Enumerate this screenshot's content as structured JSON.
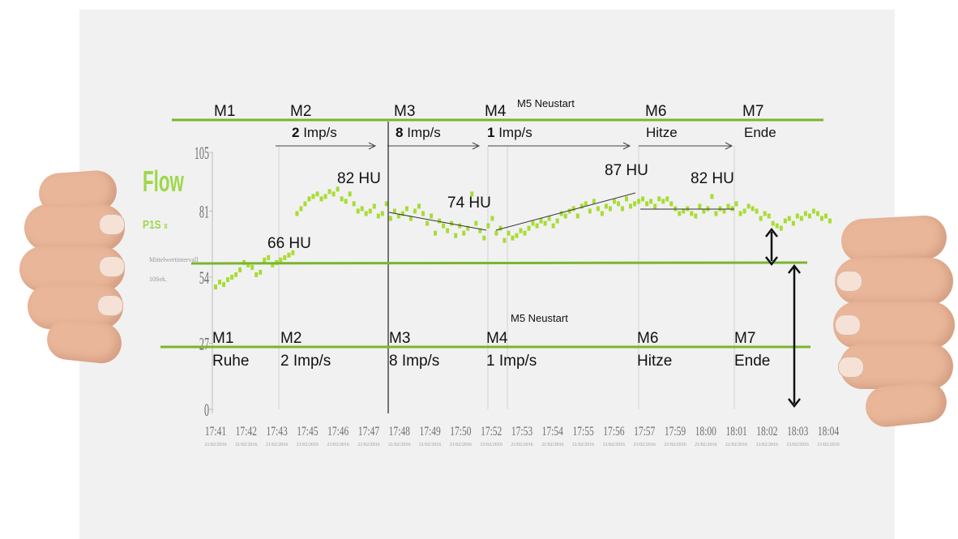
{
  "chart_data": {
    "type": "scatter",
    "title": "Flow",
    "subtitle": "P1S",
    "legend_marker": "x",
    "note_line1": "Mittelwertintervall",
    "note_line2": "10Sek.",
    "ylim": [
      0,
      105
    ],
    "yticks": [
      "105",
      "81",
      "54",
      "27",
      "0"
    ],
    "xticks": [
      "17:41",
      "17:42",
      "17:43",
      "17:45",
      "17:46",
      "17:47",
      "17:48",
      "17:49",
      "17:50",
      "17:52",
      "17:53",
      "17:54",
      "17:55",
      "17:56",
      "17:57",
      "17:59",
      "18:00",
      "18:01",
      "18:02",
      "18:03",
      "18:04"
    ],
    "date_label": "21/02/2016",
    "series_color": "#a8dc34",
    "values": [
      50,
      52,
      51,
      53,
      54,
      55,
      57,
      60,
      59,
      58,
      55,
      56,
      61,
      62,
      59,
      60,
      61,
      62,
      63,
      64,
      80,
      82,
      84,
      86,
      87,
      88,
      86,
      87,
      89,
      88,
      90,
      86,
      85,
      88,
      84,
      81,
      82,
      80,
      81,
      83,
      79,
      80,
      84,
      78,
      81,
      79,
      80,
      82,
      78,
      81,
      83,
      80,
      76,
      79,
      72,
      77,
      75,
      73,
      76,
      71,
      75,
      72,
      74,
      88,
      76,
      73,
      70,
      75,
      78,
      72,
      74,
      69,
      72,
      70,
      71,
      73,
      72,
      74,
      76,
      75,
      77,
      76,
      78,
      75,
      77,
      80,
      79,
      81,
      82,
      79,
      83,
      84,
      81,
      85,
      82,
      80,
      83,
      82,
      85,
      84,
      82,
      86,
      83,
      84,
      85,
      86,
      84,
      85,
      83,
      86,
      85,
      86,
      84,
      82,
      80,
      81,
      82,
      80,
      79,
      83,
      81,
      82,
      87,
      80,
      82,
      81,
      83,
      82,
      84,
      80,
      81,
      83,
      82,
      81,
      78,
      80,
      79,
      76,
      75,
      74,
      77,
      78,
      76,
      79,
      78,
      80,
      79,
      81,
      80,
      78,
      79,
      77
    ]
  },
  "annotations": {
    "top_markers": [
      "M1",
      "M2",
      "M3",
      "M4",
      "M6",
      "M7"
    ],
    "top_m5": "M5 Neustart",
    "top_rates": [
      "2",
      "8",
      "1"
    ],
    "top_rate_unit": " Imp/s",
    "top_labels": [
      "Hitze",
      "Ende"
    ],
    "hu_values": [
      "66 HU",
      "82 HU",
      "74 HU",
      "87 HU",
      "82 HU"
    ],
    "bottom_markers": [
      "M1",
      "M2",
      "M3",
      "M4",
      "M6",
      "M7"
    ],
    "bottom_m5": "M5 Neustart",
    "bottom_labels": [
      "Ruhe",
      "2 Imp/s",
      "8 Imp/s",
      "1 Imp/s",
      "Hitze",
      "Ende"
    ]
  },
  "colors": {
    "paper": "#f1f1f1",
    "green_line": "#7ab52c",
    "title_green": "#9ed84a"
  }
}
